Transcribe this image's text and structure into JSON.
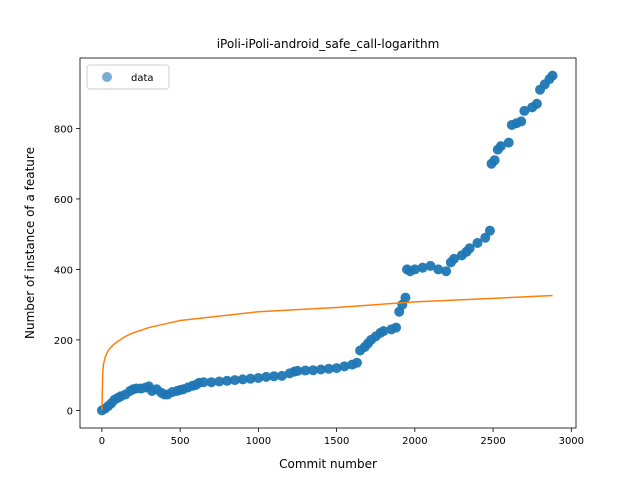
{
  "chart_data": {
    "type": "scatter",
    "title": "iPoli-iPoli-android_safe_call-logarithm",
    "xlabel": "Commit number",
    "ylabel": "Number of instance of a feature",
    "xlim": [
      -140,
      3030
    ],
    "ylim": [
      -50,
      1000
    ],
    "xticks": [
      0,
      500,
      1000,
      1500,
      2000,
      2500,
      3000
    ],
    "yticks": [
      0,
      200,
      400,
      600,
      800
    ],
    "grid": false,
    "legend": {
      "placement": "top-left",
      "entries": [
        "data"
      ]
    },
    "colors": {
      "data": "#1f77b4",
      "fit": "#ff7f0e"
    },
    "series": [
      {
        "name": "data",
        "kind": "scatter",
        "points": [
          [
            0,
            0
          ],
          [
            20,
            5
          ],
          [
            40,
            12
          ],
          [
            60,
            20
          ],
          [
            80,
            30
          ],
          [
            100,
            35
          ],
          [
            120,
            40
          ],
          [
            150,
            45
          ],
          [
            180,
            55
          ],
          [
            200,
            60
          ],
          [
            220,
            62
          ],
          [
            250,
            62
          ],
          [
            280,
            65
          ],
          [
            300,
            68
          ],
          [
            320,
            55
          ],
          [
            350,
            60
          ],
          [
            380,
            50
          ],
          [
            400,
            45
          ],
          [
            420,
            45
          ],
          [
            450,
            52
          ],
          [
            480,
            55
          ],
          [
            500,
            58
          ],
          [
            520,
            60
          ],
          [
            550,
            65
          ],
          [
            580,
            70
          ],
          [
            600,
            72
          ],
          [
            620,
            78
          ],
          [
            650,
            80
          ],
          [
            700,
            80
          ],
          [
            750,
            82
          ],
          [
            800,
            84
          ],
          [
            850,
            86
          ],
          [
            900,
            88
          ],
          [
            950,
            90
          ],
          [
            1000,
            92
          ],
          [
            1050,
            95
          ],
          [
            1100,
            97
          ],
          [
            1150,
            98
          ],
          [
            1200,
            105
          ],
          [
            1230,
            110
          ],
          [
            1250,
            112
          ],
          [
            1300,
            113
          ],
          [
            1350,
            114
          ],
          [
            1400,
            116
          ],
          [
            1450,
            118
          ],
          [
            1500,
            120
          ],
          [
            1550,
            125
          ],
          [
            1600,
            130
          ],
          [
            1630,
            135
          ],
          [
            1650,
            170
          ],
          [
            1680,
            180
          ],
          [
            1700,
            190
          ],
          [
            1720,
            200
          ],
          [
            1750,
            210
          ],
          [
            1780,
            220
          ],
          [
            1800,
            225
          ],
          [
            1850,
            230
          ],
          [
            1880,
            235
          ],
          [
            1900,
            280
          ],
          [
            1920,
            300
          ],
          [
            1940,
            320
          ],
          [
            1950,
            400
          ],
          [
            1970,
            395
          ],
          [
            2000,
            400
          ],
          [
            2050,
            405
          ],
          [
            2100,
            410
          ],
          [
            2150,
            400
          ],
          [
            2200,
            395
          ],
          [
            2230,
            420
          ],
          [
            2250,
            430
          ],
          [
            2300,
            440
          ],
          [
            2330,
            450
          ],
          [
            2350,
            460
          ],
          [
            2400,
            475
          ],
          [
            2450,
            490
          ],
          [
            2480,
            510
          ],
          [
            2490,
            700
          ],
          [
            2510,
            710
          ],
          [
            2530,
            740
          ],
          [
            2550,
            750
          ],
          [
            2600,
            760
          ],
          [
            2620,
            810
          ],
          [
            2650,
            815
          ],
          [
            2680,
            820
          ],
          [
            2700,
            850
          ],
          [
            2750,
            860
          ],
          [
            2780,
            870
          ],
          [
            2800,
            910
          ],
          [
            2830,
            925
          ],
          [
            2860,
            940
          ],
          [
            2880,
            950
          ]
        ]
      },
      {
        "name": "fit",
        "kind": "line",
        "points": [
          [
            0,
            0
          ],
          [
            5,
            105
          ],
          [
            10,
            130
          ],
          [
            20,
            150
          ],
          [
            40,
            170
          ],
          [
            70,
            185
          ],
          [
            100,
            195
          ],
          [
            150,
            210
          ],
          [
            200,
            220
          ],
          [
            300,
            235
          ],
          [
            400,
            245
          ],
          [
            500,
            255
          ],
          [
            700,
            265
          ],
          [
            1000,
            280
          ],
          [
            1500,
            292
          ],
          [
            2000,
            308
          ],
          [
            2500,
            318
          ],
          [
            2880,
            326
          ]
        ]
      }
    ]
  }
}
